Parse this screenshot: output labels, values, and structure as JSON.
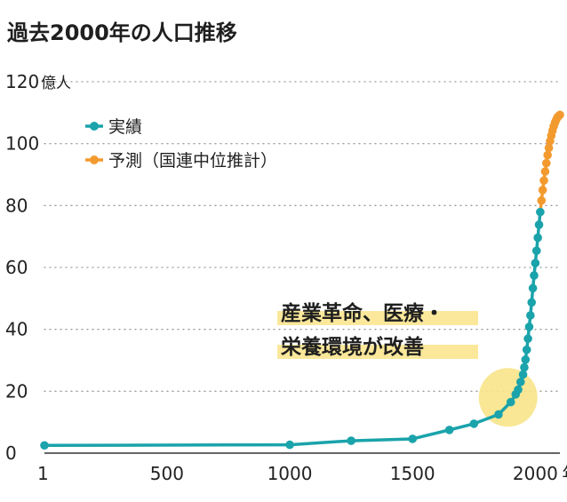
{
  "chart_data": {
    "type": "line",
    "title": "過去2000年の人口推移",
    "y_unit": "億人",
    "x_unit": "年",
    "xlim": [
      1,
      2100
    ],
    "ylim": [
      0,
      120
    ],
    "x_ticks": [
      "1",
      "500",
      "1000",
      "1500",
      "2000"
    ],
    "y_ticks": [
      "0",
      "20",
      "40",
      "60",
      "80",
      "100",
      "120"
    ],
    "grid": "horizontal dotted",
    "legend": {
      "placement": "top-left",
      "items": [
        {
          "label": "実績",
          "color": "#1aa3ab"
        },
        {
          "label": "予測（国連中位推計）",
          "color": "#f39a2f"
        }
      ]
    },
    "annotation": {
      "lines": [
        "産業革命、医療・",
        "栄養環境が改善"
      ],
      "highlight_year": 1900,
      "highlight_value": 18
    },
    "series": [
      {
        "name": "実績",
        "color": "#1aa3ab",
        "x": [
          1,
          1000,
          1250,
          1500,
          1650,
          1750,
          1850,
          1900,
          1920,
          1930,
          1940,
          1950,
          1955,
          1960,
          1965,
          1970,
          1975,
          1980,
          1985,
          1990,
          1995,
          2000,
          2005,
          2010,
          2015,
          2020
        ],
        "y": [
          2.5,
          2.7,
          4.0,
          4.6,
          7.5,
          9.5,
          12.5,
          16.5,
          19,
          20.5,
          23,
          25.4,
          27.7,
          30.2,
          33.4,
          37,
          40.8,
          44.5,
          48.7,
          53.3,
          57.4,
          61.4,
          65.4,
          69.6,
          73.8,
          77.9
        ]
      },
      {
        "name": "予測（国連中位推計）",
        "color": "#f39a2f",
        "x": [
          2020,
          2025,
          2030,
          2035,
          2040,
          2045,
          2050,
          2055,
          2060,
          2065,
          2070,
          2075,
          2080,
          2085,
          2090,
          2095,
          2100
        ],
        "y": [
          77.9,
          81.6,
          85,
          88.1,
          91,
          93.7,
          96.3,
          98.6,
          100.8,
          102.6,
          104.2,
          105.6,
          106.8,
          107.7,
          108.5,
          108.9,
          109.3
        ]
      }
    ]
  }
}
